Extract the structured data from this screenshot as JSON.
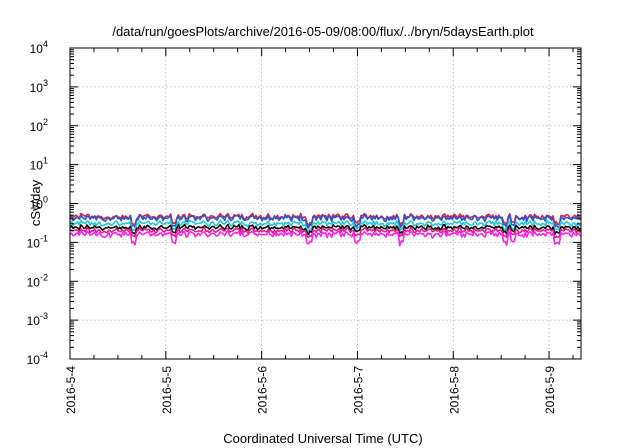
{
  "chart_data": {
    "type": "line",
    "title": "/data/run/goesPlots/archive/2016-05-09/08:00/flux/../bryn/5daysEarth.plot",
    "xlabel": "Coordinated Universal Time (UTC)",
    "ylabel": "cSv/day",
    "yscale": "log",
    "ylim": [
      0.0001,
      10000
    ],
    "xlim": [
      "2016-05-04T00:00",
      "2016-05-09T08:00"
    ],
    "grid": true,
    "x_ticks": [
      "2016-5-4",
      "2016-5-5",
      "2016-5-6",
      "2016-5-7",
      "2016-5-8",
      "2016-5-9"
    ],
    "y_ticks": [
      {
        "base": "10",
        "exp": "4"
      },
      {
        "base": "10",
        "exp": "3"
      },
      {
        "base": "10",
        "exp": "2"
      },
      {
        "base": "10",
        "exp": "1"
      },
      {
        "base": "10",
        "exp": "0"
      },
      {
        "base": "10",
        "exp": "-1"
      },
      {
        "base": "10",
        "exp": "-2"
      },
      {
        "base": "10",
        "exp": "-3"
      },
      {
        "base": "10",
        "exp": "-4"
      }
    ],
    "series": [
      {
        "color": "#e8202a",
        "approx_level": 0.48,
        "dip_depth": 0.32
      },
      {
        "color": "#2255e0",
        "approx_level": 0.44,
        "dip_depth": 0.38
      },
      {
        "color": "#22c8d8",
        "approx_level": 0.32,
        "dip_depth": 0.3
      },
      {
        "color": "#0a0a0a",
        "approx_level": 0.25,
        "dip_depth": 0.25
      },
      {
        "color": "#e61c8c",
        "approx_level": 0.21,
        "dip_depth": 0.28
      },
      {
        "color": "#ff22ee",
        "approx_level": 0.17,
        "dip_depth": 0.4
      }
    ],
    "notable_dips": [
      "2016-05-04T16:00",
      "2016-05-05T02:00",
      "2016-05-06T12:00",
      "2016-05-07T00:00",
      "2016-05-07T11:00",
      "2016-05-08T13:00",
      "2016-05-08T15:00",
      "2016-05-09T02:00"
    ]
  }
}
